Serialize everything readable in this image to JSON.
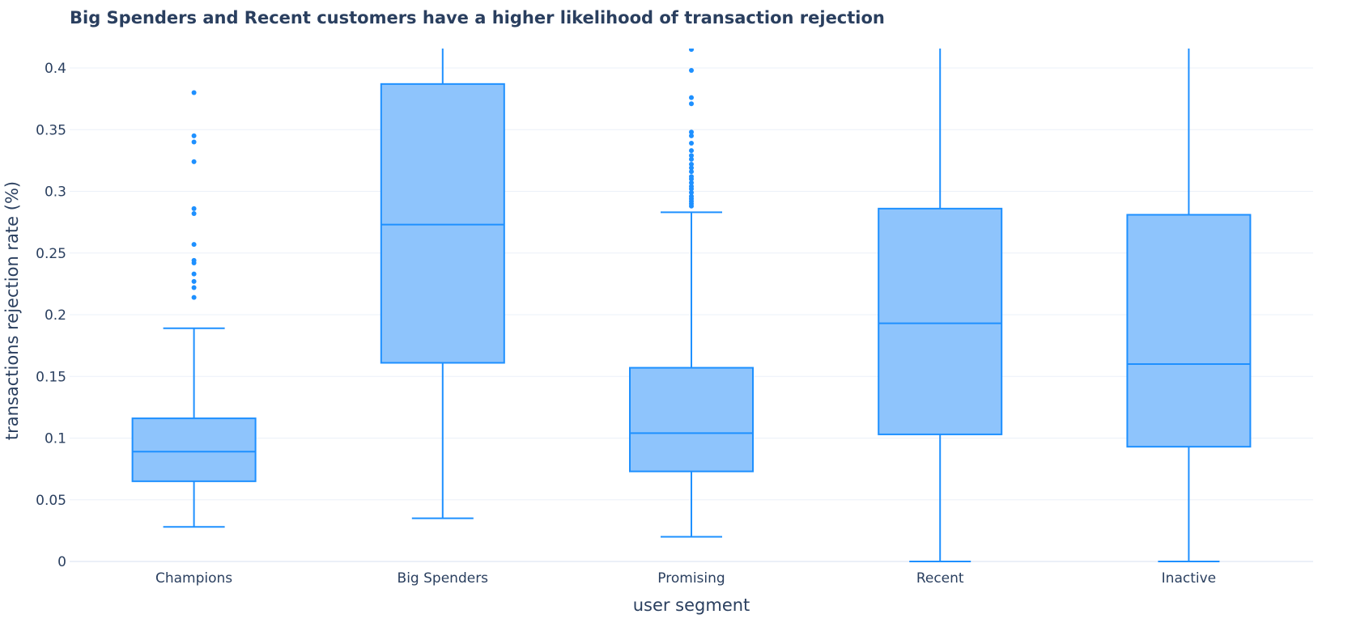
{
  "chart_data": {
    "type": "box",
    "title": "Big Spenders and Recent customers have a higher likelihood of transaction rejection",
    "xlabel": "user segment",
    "ylabel": "transactions rejection rate (%)",
    "ylim": [
      0,
      0.415
    ],
    "yticks": [
      {
        "value": 0,
        "label": "0"
      },
      {
        "value": 0.05,
        "label": "0.05"
      },
      {
        "value": 0.1,
        "label": "0.1"
      },
      {
        "value": 0.15,
        "label": "0.15"
      },
      {
        "value": 0.2,
        "label": "0.2"
      },
      {
        "value": 0.25,
        "label": "0.25"
      },
      {
        "value": 0.3,
        "label": "0.3"
      },
      {
        "value": 0.35,
        "label": "0.35"
      },
      {
        "value": 0.4,
        "label": "0.4"
      }
    ],
    "grid": true,
    "color": "#1e90ff",
    "fill_color": "#8ec4fc",
    "categories": [
      "Champions",
      "Big Spenders",
      "Promising",
      "Recent",
      "Inactive"
    ],
    "boxes": [
      {
        "category": "Champions",
        "lower_whisker": 0.028,
        "q1": 0.065,
        "median": 0.089,
        "q3": 0.116,
        "upper_whisker": 0.189,
        "outliers": [
          0.214,
          0.222,
          0.227,
          0.233,
          0.242,
          0.244,
          0.257,
          0.282,
          0.286,
          0.324,
          0.34,
          0.345,
          0.38
        ]
      },
      {
        "category": "Big Spenders",
        "lower_whisker": 0.035,
        "q1": 0.161,
        "median": 0.273,
        "q3": 0.387,
        "upper_whisker": 0.42,
        "outliers": []
      },
      {
        "category": "Promising",
        "lower_whisker": 0.02,
        "q1": 0.073,
        "median": 0.104,
        "q3": 0.157,
        "upper_whisker": 0.283,
        "outliers": [
          0.288,
          0.29,
          0.292,
          0.294,
          0.296,
          0.299,
          0.302,
          0.304,
          0.307,
          0.31,
          0.312,
          0.316,
          0.319,
          0.322,
          0.326,
          0.329,
          0.333,
          0.339,
          0.345,
          0.348,
          0.371,
          0.376,
          0.398,
          0.415
        ]
      },
      {
        "category": "Recent",
        "lower_whisker": 0.0,
        "q1": 0.103,
        "median": 0.193,
        "q3": 0.286,
        "upper_whisker": 0.42,
        "outliers": []
      },
      {
        "category": "Inactive",
        "lower_whisker": 0.0,
        "q1": 0.093,
        "median": 0.16,
        "q3": 0.281,
        "upper_whisker": 0.42,
        "outliers": []
      }
    ]
  }
}
